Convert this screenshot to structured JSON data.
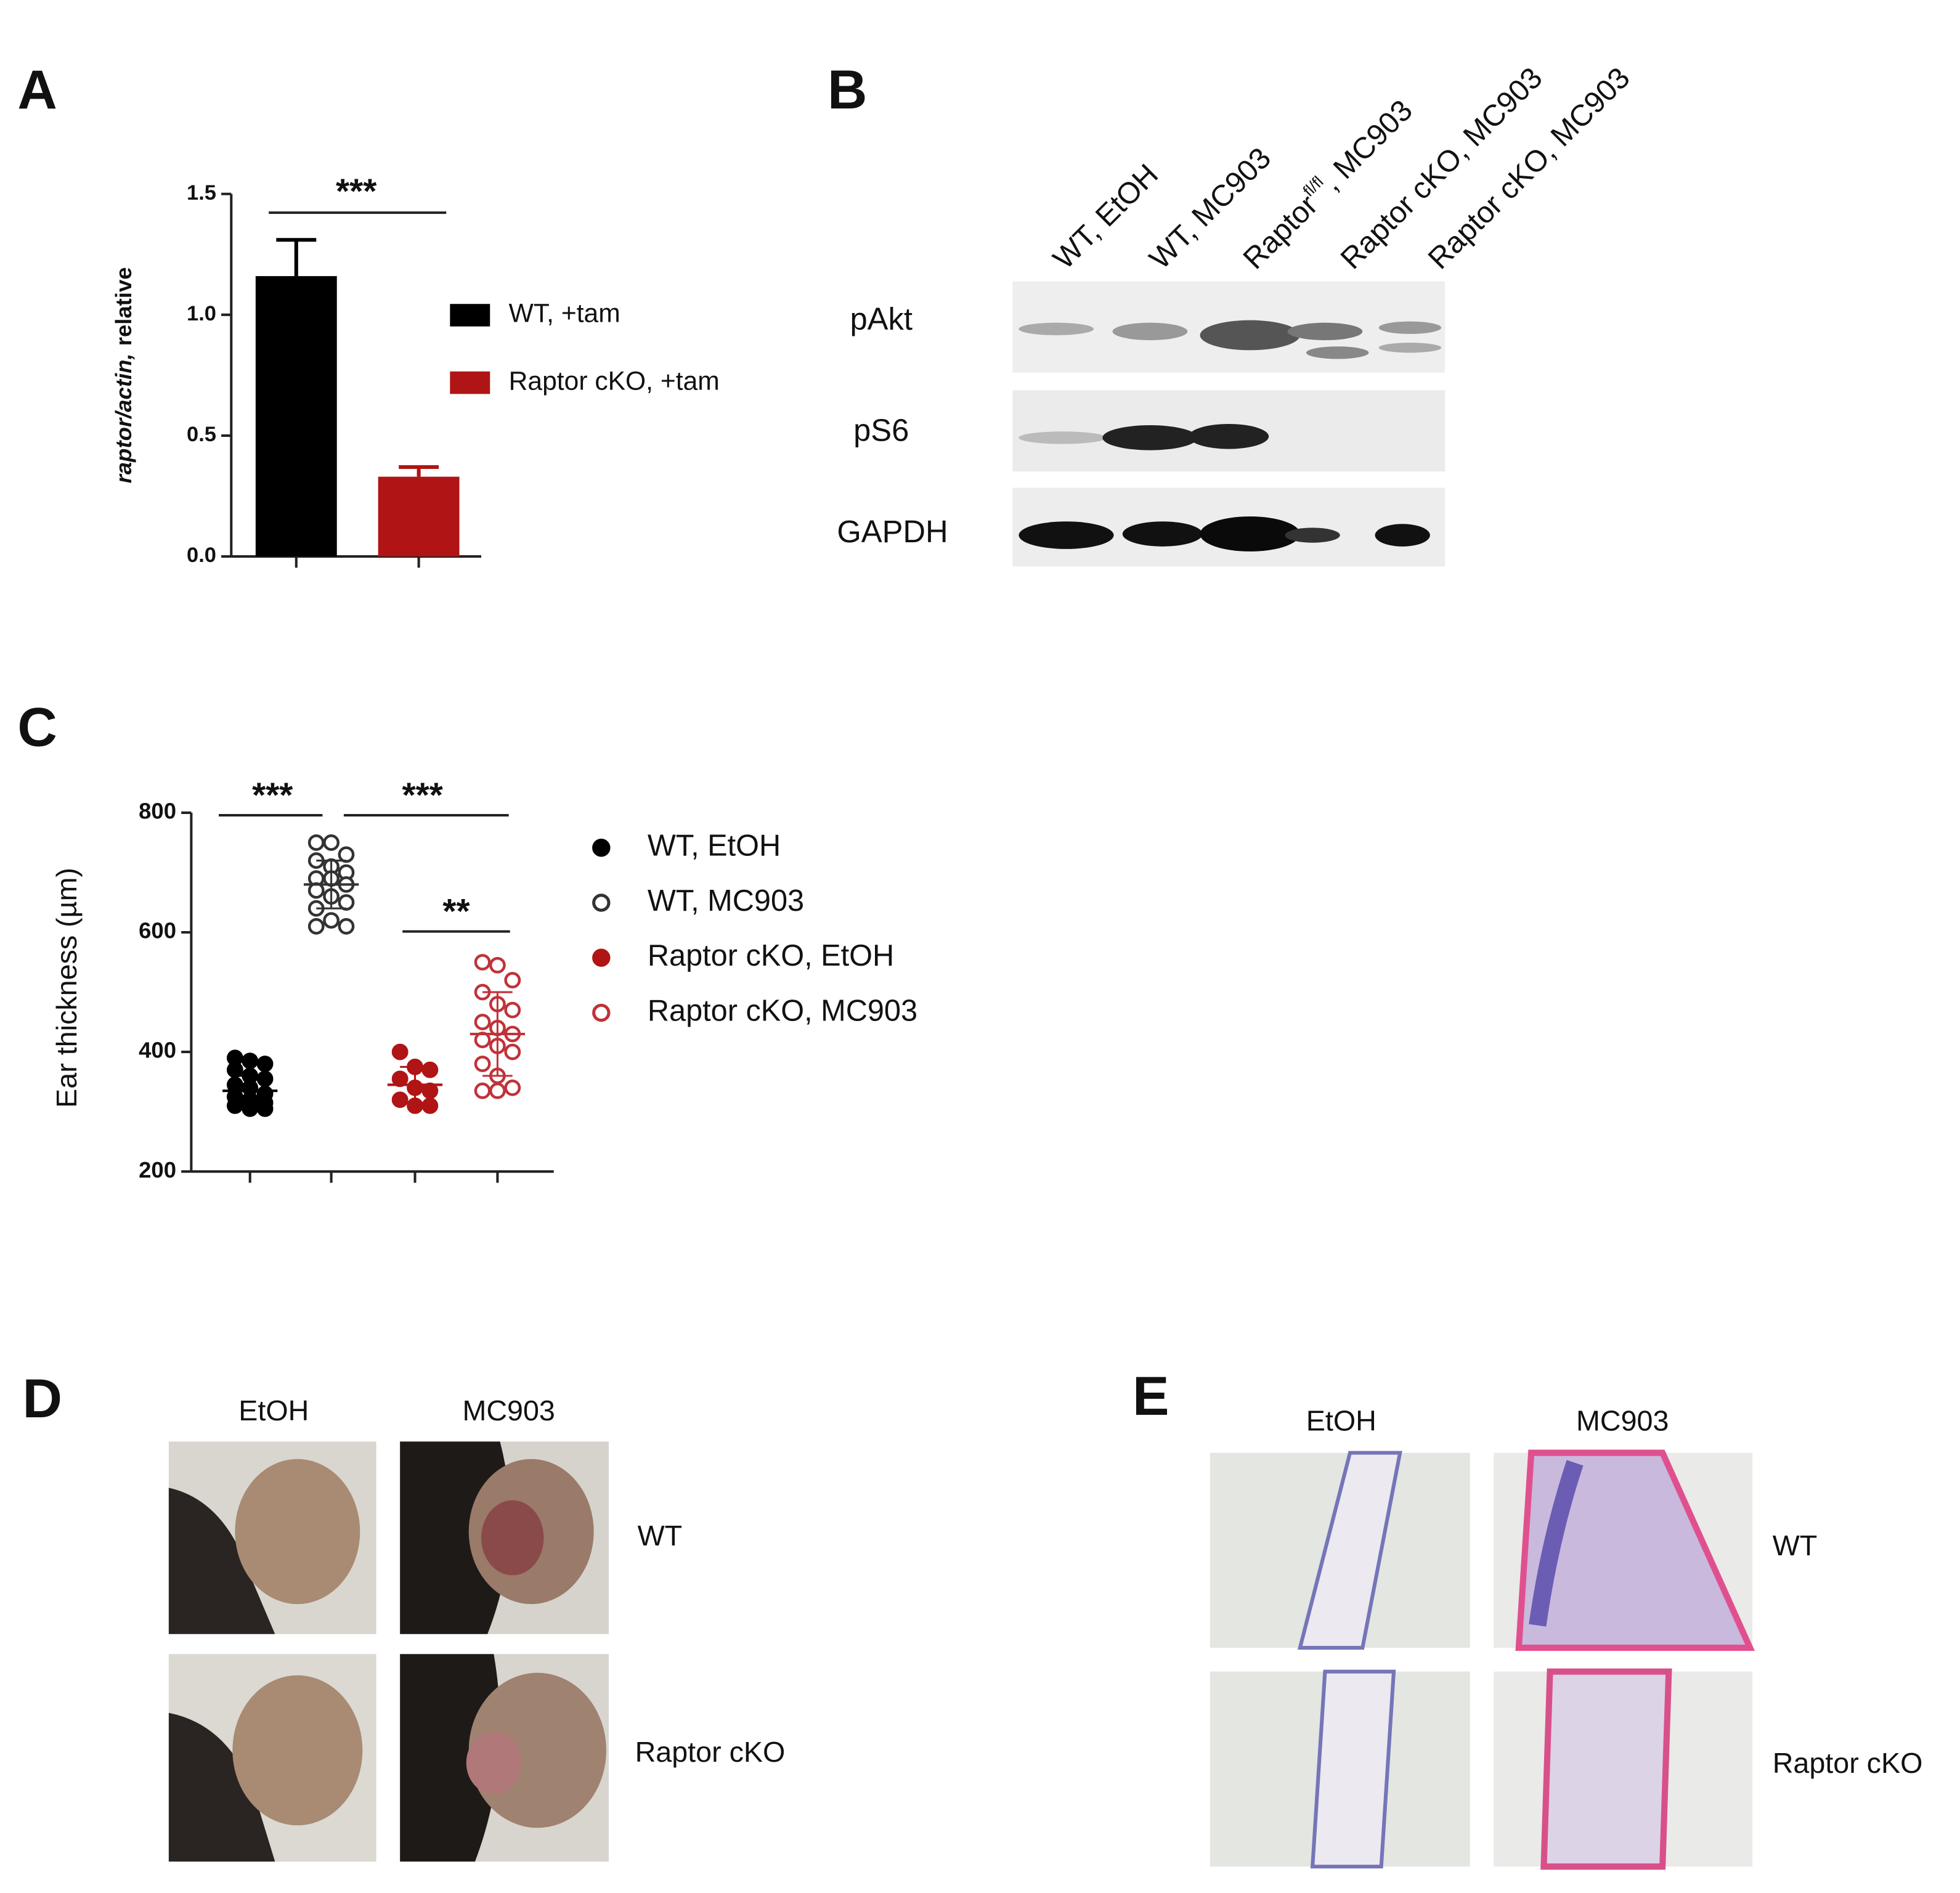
{
  "panel_labels": [
    "A",
    "B",
    "C",
    "D",
    "E"
  ],
  "chart_data": [
    {
      "type": "bar",
      "ylabel_italic": "raptor/actin,",
      "ylabel": "relative",
      "categories": [
        null,
        null
      ],
      "series": [
        {
          "name": "WT, +tam",
          "color": "#000000",
          "values": [
            1.16,
            null
          ],
          "errors": [
            0.15,
            null
          ]
        },
        {
          "name": "Raptor cKO, +tam",
          "color": "#b01414",
          "values": [
            null,
            0.33
          ],
          "errors": [
            null,
            0.04
          ]
        }
      ],
      "ylim": [
        0,
        1.5
      ],
      "yticks": [
        {
          "value": 0,
          "label": "0.0"
        },
        0.5,
        {
          "value": 1,
          "label": "1.0"
        },
        1.5
      ],
      "annotations": [
        "***"
      ]
    },
    {
      "type": "scatter",
      "ylabel": "Ear thickness (µm)",
      "categories": [
        null,
        null,
        null,
        null
      ],
      "series": [
        {
          "name": "WT, EtOH",
          "color": "#000000",
          "filled": true,
          "values": [
            390,
            385,
            380,
            370,
            360,
            355,
            345,
            340,
            330,
            325,
            320,
            315,
            310,
            305,
            305
          ],
          "mean": 335,
          "sd": 25
        },
        {
          "name": "WT, MC903",
          "color": "#333333",
          "filled": false,
          "values": [
            750,
            750,
            730,
            720,
            710,
            700,
            690,
            690,
            680,
            670,
            660,
            650,
            640,
            620,
            610,
            610
          ],
          "mean": 680,
          "sd": 40
        },
        {
          "name": "Raptor cKO, EtOH",
          "color": "#b01414",
          "filled": true,
          "values": [
            400,
            375,
            370,
            355,
            340,
            335,
            320,
            310,
            310
          ],
          "mean": 345,
          "sd": 30
        },
        {
          "name": "Raptor cKO, MC903",
          "color": "#c0323a",
          "filled": false,
          "values": [
            550,
            545,
            520,
            500,
            480,
            470,
            450,
            440,
            430,
            420,
            410,
            400,
            380,
            360,
            340,
            335,
            335
          ],
          "mean": 430,
          "sd": 70
        }
      ],
      "ylim": [
        200,
        800
      ],
      "yticks": [
        200,
        400,
        600,
        800
      ],
      "annotations": [
        "***",
        "***",
        "**"
      ]
    }
  ],
  "blot": {
    "lanes": [
      "WT, EtOH",
      "WT, MC903",
      [
        "Raptor",
        "fl/fl",
        ", MC903"
      ],
      "Raptor cKO, MC903",
      "Raptor cKO, MC903"
    ],
    "rows": [
      "pAkt",
      "pS6",
      "GAPDH"
    ]
  },
  "photos": {
    "columns": [
      "EtOH",
      "MC903"
    ],
    "rows": [
      "WT",
      "Raptor cKO"
    ]
  },
  "histology": {
    "columns": [
      "EtOH",
      "MC903"
    ],
    "rows": [
      "WT",
      "Raptor cKO"
    ]
  }
}
